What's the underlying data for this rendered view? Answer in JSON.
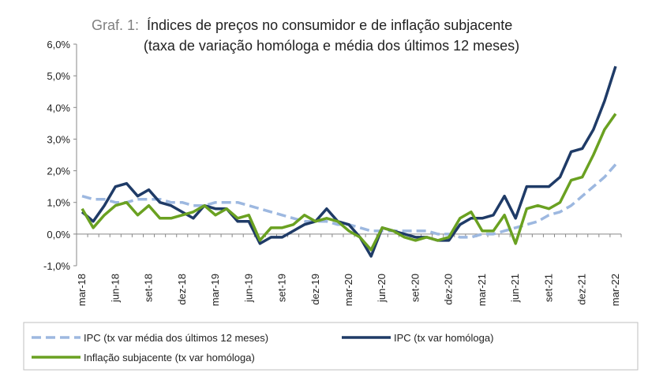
{
  "chart_data": {
    "type": "line",
    "title_prefix": "Graf. 1:",
    "title": "Índices de preços no consumidor e de inflação subjacente",
    "subtitle": "(taxa de variação homóloga e média dos últimos 12 meses)",
    "categories": [
      "mar-18",
      null,
      null,
      "jun-18",
      null,
      null,
      "set-18",
      null,
      null,
      "dez-18",
      null,
      null,
      "mar-19",
      null,
      null,
      "jun-19",
      null,
      null,
      "set-19",
      null,
      null,
      "dez-19",
      null,
      null,
      "mar-20",
      null,
      null,
      "jun-20",
      null,
      null,
      "set-20",
      null,
      null,
      "dez-20",
      null,
      null,
      "mar-21",
      null,
      null,
      "jun-21",
      null,
      null,
      "set-21",
      null,
      null,
      "dez-21",
      null,
      null,
      "mar-22"
    ],
    "series": [
      {
        "name": "IPC (tx var média dos últimos 12 meses)",
        "color": "#9db8e0",
        "dashed": true,
        "values": [
          1.2,
          1.1,
          1.1,
          1.0,
          1.0,
          1.1,
          1.1,
          1.1,
          1.0,
          1.0,
          0.9,
          0.9,
          1.0,
          1.0,
          1.0,
          0.9,
          0.8,
          0.7,
          0.6,
          0.5,
          0.4,
          0.4,
          0.4,
          0.3,
          0.3,
          0.2,
          0.1,
          0.1,
          0.1,
          0.1,
          0.1,
          0.1,
          0.0,
          0.0,
          -0.1,
          -0.1,
          0.0,
          0.0,
          0.1,
          0.2,
          0.3,
          0.4,
          0.6,
          0.7,
          0.9,
          1.2,
          1.5,
          1.8,
          2.2
        ]
      },
      {
        "name": "IPC (tx var homóloga)",
        "color": "#1f3b67",
        "dashed": false,
        "values": [
          0.7,
          0.4,
          0.9,
          1.5,
          1.6,
          1.2,
          1.4,
          1.0,
          0.9,
          0.7,
          0.5,
          0.9,
          0.8,
          0.8,
          0.4,
          0.4,
          -0.3,
          -0.1,
          -0.1,
          0.1,
          0.3,
          0.4,
          0.8,
          0.4,
          0.3,
          -0.1,
          -0.7,
          0.2,
          0.1,
          0.0,
          -0.1,
          -0.1,
          -0.2,
          -0.2,
          0.3,
          0.5,
          0.5,
          0.6,
          1.2,
          0.5,
          1.5,
          1.5,
          1.5,
          1.8,
          2.6,
          2.7,
          3.3,
          4.2,
          5.3
        ]
      },
      {
        "name": "Inflação subjacente (tx var homóloga)",
        "color": "#6aa121",
        "dashed": false,
        "values": [
          0.8,
          0.2,
          0.6,
          0.9,
          1.0,
          0.6,
          0.9,
          0.5,
          0.5,
          0.6,
          0.7,
          0.9,
          0.6,
          0.8,
          0.5,
          0.6,
          -0.2,
          0.2,
          0.2,
          0.3,
          0.6,
          0.4,
          0.5,
          0.4,
          0.1,
          -0.1,
          -0.5,
          0.2,
          0.1,
          -0.1,
          -0.2,
          -0.1,
          -0.2,
          -0.1,
          0.5,
          0.7,
          0.1,
          0.1,
          0.6,
          -0.3,
          0.8,
          0.9,
          0.8,
          1.0,
          1.7,
          1.8,
          2.5,
          3.3,
          3.8
        ]
      }
    ],
    "ylim": [
      -1,
      6
    ],
    "yticks": [
      {
        "value": -1,
        "label": "-1,0%"
      },
      {
        "value": 0,
        "label": "0,0%"
      },
      {
        "value": 1,
        "label": "1,0%"
      },
      {
        "value": 2,
        "label": "2,0%"
      },
      {
        "value": 3,
        "label": "3,0%"
      },
      {
        "value": 4,
        "label": "4,0%"
      },
      {
        "value": 5,
        "label": "5,0%"
      },
      {
        "value": 6,
        "label": "6,0%"
      }
    ],
    "grid": false
  }
}
